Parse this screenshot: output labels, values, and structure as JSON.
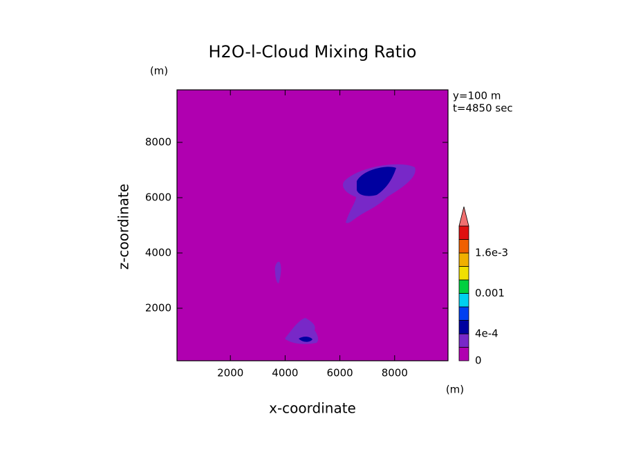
{
  "chart_data": {
    "type": "contour",
    "title": "H2O-l-Cloud Mixing Ratio",
    "xlabel": "x-coordinate",
    "ylabel": "z-coordinate",
    "x_unit": "(m)",
    "y_unit": "(m)",
    "annotations": [
      "y=100 m",
      "t=4850 sec"
    ],
    "xlim": [
      50,
      9950
    ],
    "ylim": [
      100,
      9900
    ],
    "xticks": [
      2000,
      4000,
      6000,
      8000
    ],
    "yticks": [
      2000,
      4000,
      6000,
      8000
    ],
    "colorbar": {
      "levels": [
        0,
        0.0002,
        0.0004,
        0.0006,
        0.0008,
        0.001,
        0.0012,
        0.0014,
        0.0016,
        0.0018,
        0.002
      ],
      "colors": [
        "#b000b0",
        "#7828c8",
        "#0000a0",
        "#0040f0",
        "#00d0f0",
        "#00d040",
        "#f0e000",
        "#f0b000",
        "#f06000",
        "#e01010"
      ],
      "extend_color": "#f07070",
      "ticks": [
        0,
        {
          "value": 0.0004,
          "label": "4e-4"
        },
        0.001,
        {
          "value": 0.0016,
          "label": "1.6e-3"
        }
      ]
    }
  }
}
